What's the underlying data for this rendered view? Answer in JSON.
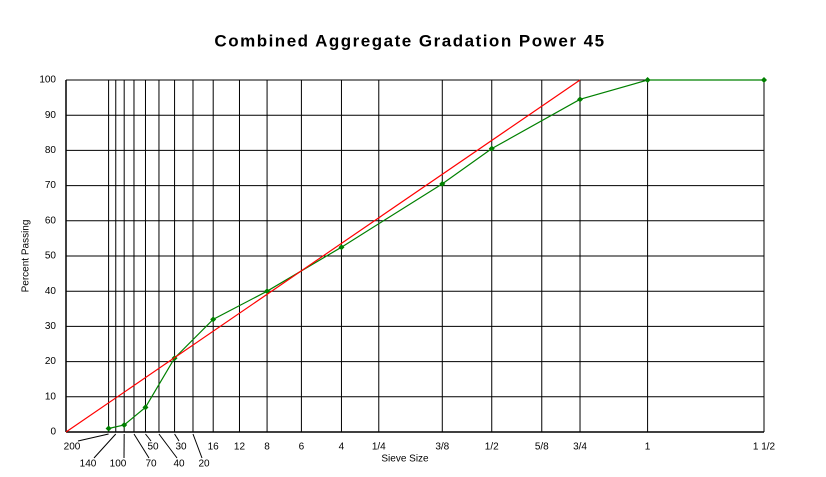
{
  "chart_data": {
    "type": "line",
    "title": "Combined Aggregate Gradation Power 45",
    "x_label": "Sieve Size",
    "y_label": "Percent Passing",
    "xscale": "power",
    "xpower": 0.45,
    "xlim": [
      0,
      37.5
    ],
    "xticks": [
      {
        "value": 0.075,
        "label": "200"
      },
      {
        "value": 0.106,
        "label": "140"
      },
      {
        "value": 0.15,
        "label": "100"
      },
      {
        "value": 0.212,
        "label": "70"
      },
      {
        "value": 0.3,
        "label": "50"
      },
      {
        "value": 0.425,
        "label": "40"
      },
      {
        "value": 0.6,
        "label": "30"
      },
      {
        "value": 0.85,
        "label": "20"
      },
      {
        "value": 1.18,
        "label": "16"
      },
      {
        "value": 1.7,
        "label": "12"
      },
      {
        "value": 2.36,
        "label": "8"
      },
      {
        "value": 3.35,
        "label": "6"
      },
      {
        "value": 4.75,
        "label": "4"
      },
      {
        "value": 6.3,
        "label": "1/4"
      },
      {
        "value": 9.5,
        "label": "3/8"
      },
      {
        "value": 12.5,
        "label": "1/2"
      },
      {
        "value": 16,
        "label": "5/8"
      },
      {
        "value": 19,
        "label": "3/4"
      },
      {
        "value": 25,
        "label": "1"
      },
      {
        "value": 37.5,
        "label": "1 1/2"
      }
    ],
    "ylim": [
      0,
      100
    ],
    "yticks": [
      0,
      10,
      20,
      30,
      40,
      50,
      60,
      70,
      80,
      90,
      100
    ],
    "grid": true,
    "series": [
      {
        "color": "#008000",
        "x": [
          0.075,
          0.15,
          0.3,
          0.6,
          1.18,
          2.36,
          4.75,
          9.5,
          12.5,
          19,
          25,
          37.5
        ],
        "values": [
          1,
          2,
          7,
          21,
          32,
          40,
          52.5,
          70.5,
          80.5,
          94.5,
          100,
          100
        ],
        "markers": true
      },
      {
        "color": "#ff0000",
        "x": [
          0,
          19
        ],
        "values": [
          0,
          100
        ],
        "markers": false
      }
    ]
  }
}
